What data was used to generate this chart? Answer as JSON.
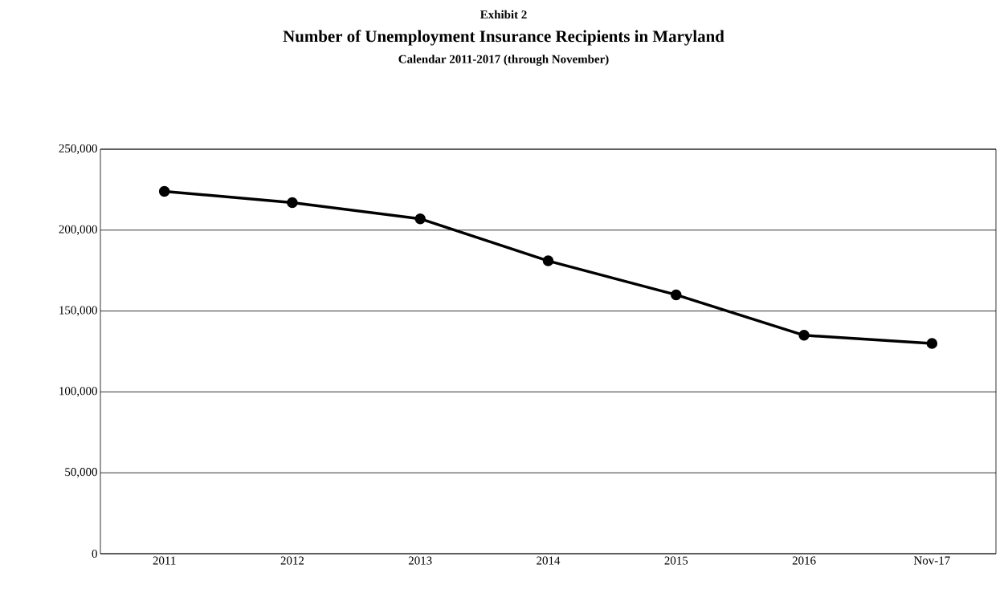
{
  "chart_data": {
    "type": "line",
    "title": "Number of Unemployment Insurance Recipients in Maryland",
    "subtitle": "Calendar 2011-2017 (through November)",
    "annotations": [
      "Exhibit 2"
    ],
    "categories": [
      "2011",
      "2012",
      "2013",
      "2014",
      "2015",
      "2016",
      "Nov-17"
    ],
    "series": [
      {
        "color": "#000000",
        "values": [
          224000,
          217000,
          207000,
          181000,
          160000,
          135000,
          130000
        ]
      }
    ],
    "ylim": [
      0,
      250000
    ],
    "yticks": [
      {
        "value": 0,
        "label": "0"
      },
      {
        "value": 50000,
        "label": "50,000"
      },
      {
        "value": 100000,
        "label": "100,000"
      },
      {
        "value": 150000,
        "label": "150,000"
      },
      {
        "value": 200000,
        "label": "200,000"
      },
      {
        "value": 250000,
        "label": "250,000"
      }
    ],
    "grid": "y",
    "marker": "circle",
    "line_style": "solid"
  }
}
